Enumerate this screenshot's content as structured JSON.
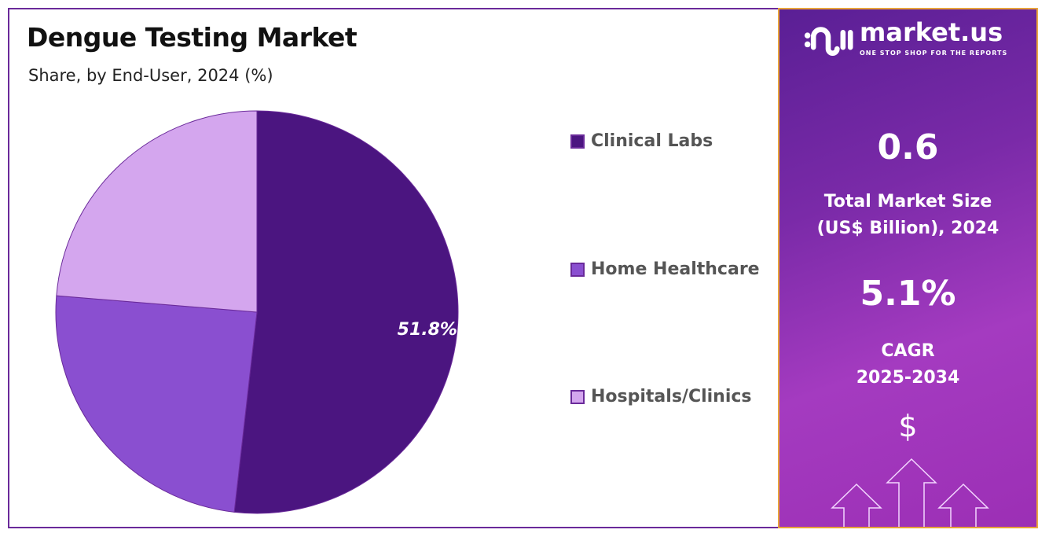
{
  "chart_data": {
    "type": "pie",
    "title": "Dengue Testing Market",
    "subtitle": "Share, by End-User, 2024 (%)",
    "categories": [
      "Clinical Labs",
      "Home Healthcare",
      "Hospitals/Clinics"
    ],
    "values": [
      51.8,
      24.5,
      23.7
    ],
    "colors": [
      "#4b1580",
      "#8a4fd0",
      "#d4a6ee"
    ],
    "data_labels": [
      "51.8%",
      "",
      ""
    ],
    "legend_position": "right"
  },
  "panel": {
    "logo_name": "market.us",
    "logo_tagline": "ONE STOP SHOP FOR THE REPORTS",
    "market_size": "0.6",
    "market_size_label_1": "Total Market Size",
    "market_size_label_2": "(US$ Billion), 2024",
    "cagr": "5.1%",
    "cagr_label_1": "CAGR",
    "cagr_label_2": "2025-2034",
    "dollar_symbol": "$"
  }
}
